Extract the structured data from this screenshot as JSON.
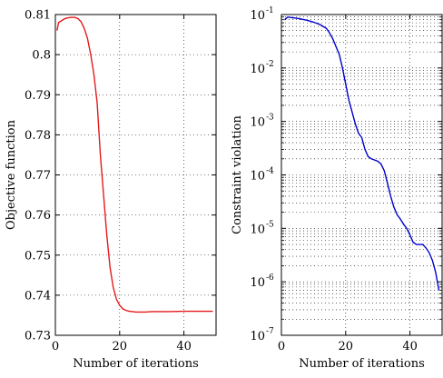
{
  "chart_data": [
    {
      "type": "line",
      "xlabel": "Number of iterations",
      "ylabel": "Objective function",
      "xlim": [
        0,
        50
      ],
      "ylim": [
        0.73,
        0.81
      ],
      "xticks": [
        0,
        20,
        40
      ],
      "yticks": [
        0.73,
        0.74,
        0.75,
        0.76,
        0.77,
        0.78,
        0.79,
        0.8,
        0.81
      ],
      "xtick_labels": [
        "0",
        "20",
        "40"
      ],
      "ytick_labels": [
        "0.73",
        "0.74",
        "0.75",
        "0.76",
        "0.77",
        "0.78",
        "0.79",
        "0.8",
        "0.81"
      ],
      "grid": true,
      "series": [
        {
          "color": "#e41a1c",
          "x": [
            0.5,
            1,
            2,
            3,
            4,
            5,
            6,
            7,
            8,
            9,
            10,
            11,
            12,
            13,
            14,
            15,
            16,
            17,
            18,
            19,
            20,
            21,
            22,
            23,
            24,
            25,
            26,
            28,
            30,
            35,
            40,
            45,
            49
          ],
          "y": [
            0.806,
            0.808,
            0.8085,
            0.809,
            0.8092,
            0.8093,
            0.8093,
            0.809,
            0.8082,
            0.8065,
            0.804,
            0.8,
            0.795,
            0.788,
            0.775,
            0.765,
            0.755,
            0.747,
            0.742,
            0.739,
            0.7375,
            0.7366,
            0.7362,
            0.736,
            0.7359,
            0.7358,
            0.7358,
            0.7358,
            0.7359,
            0.7359,
            0.736,
            0.736,
            0.736
          ]
        }
      ]
    },
    {
      "type": "line",
      "xlabel": "Number of iterations",
      "ylabel": "Constraint violation",
      "xlim": [
        0,
        50
      ],
      "ylim": [
        1e-07,
        0.1
      ],
      "yscale": "log",
      "xticks": [
        0,
        20,
        40
      ],
      "xtick_labels": [
        "0",
        "20",
        "40"
      ],
      "yticks": [
        1e-07,
        1e-06,
        1e-05,
        0.0001,
        0.001,
        0.01,
        0.1
      ],
      "ytick_base": "10",
      "ytick_exponents": [
        "-7",
        "-6",
        "-5",
        "-4",
        "-3",
        "-2",
        "-1"
      ],
      "grid": true,
      "series": [
        {
          "color": "#0000cc",
          "x": [
            1,
            2,
            3,
            5,
            8,
            10,
            12,
            14,
            15,
            16,
            17,
            18,
            19,
            20,
            21,
            22,
            23,
            24,
            25,
            26,
            27,
            28,
            29,
            30,
            31,
            32,
            33,
            34,
            35,
            36,
            37,
            38,
            39,
            40,
            41,
            42,
            43,
            44,
            45,
            46,
            47,
            48,
            49
          ],
          "y": [
            0.08,
            0.09,
            0.088,
            0.085,
            0.078,
            0.072,
            0.065,
            0.055,
            0.045,
            0.035,
            0.025,
            0.018,
            0.01,
            0.005,
            0.0025,
            0.0015,
            0.0009,
            0.0006,
            0.0005,
            0.0003,
            0.00022,
            0.0002,
            0.00019,
            0.00018,
            0.00016,
            0.00012,
            7e-05,
            4e-05,
            2.5e-05,
            1.8e-05,
            1.5e-05,
            1.2e-05,
            1e-05,
            7.5e-06,
            5.5e-06,
            5e-06,
            5e-06,
            5e-06,
            4.3e-06,
            3.5e-06,
            2.5e-06,
            1.5e-06,
            7e-07
          ]
        }
      ]
    }
  ]
}
